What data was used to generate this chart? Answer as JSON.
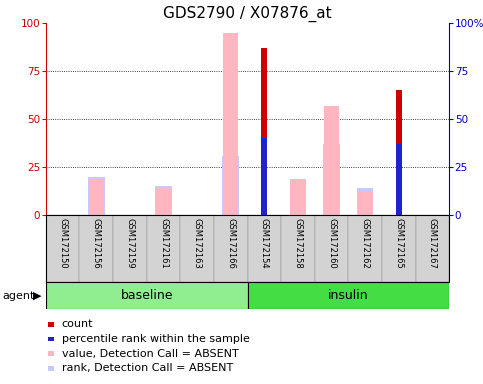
{
  "title": "GDS2790 / X07876_at",
  "samples": [
    "GSM172150",
    "GSM172156",
    "GSM172159",
    "GSM172161",
    "GSM172163",
    "GSM172166",
    "GSM172154",
    "GSM172158",
    "GSM172160",
    "GSM172162",
    "GSM172165",
    "GSM172167"
  ],
  "groups": [
    "baseline",
    "baseline",
    "baseline",
    "baseline",
    "baseline",
    "baseline",
    "insulin",
    "insulin",
    "insulin",
    "insulin",
    "insulin",
    "insulin"
  ],
  "yticks": [
    0,
    25,
    50,
    75,
    100
  ],
  "red_bars": [
    0,
    0,
    0,
    0,
    0,
    0,
    87,
    0,
    0,
    0,
    65,
    0
  ],
  "blue_bars": [
    0,
    0,
    0,
    0,
    0,
    0,
    40,
    0,
    0,
    0,
    37,
    0
  ],
  "pink_bars": [
    0,
    19,
    0,
    14,
    0,
    95,
    0,
    19,
    57,
    12,
    0,
    0
  ],
  "lavender_bars": [
    0,
    20,
    0,
    15,
    0,
    31,
    0,
    0,
    37,
    14,
    0,
    0
  ],
  "colors": {
    "red": "#CC0000",
    "blue": "#2222CC",
    "pink": "#FFB6C1",
    "lavender": "#C8C8FF"
  },
  "group_label_colors": {
    "baseline": "#90EE90",
    "insulin": "#44DD44"
  },
  "legend_items": [
    {
      "label": "count",
      "color": "#CC0000"
    },
    {
      "label": "percentile rank within the sample",
      "color": "#2222CC"
    },
    {
      "label": "value, Detection Call = ABSENT",
      "color": "#FFB6C1"
    },
    {
      "label": "rank, Detection Call = ABSENT",
      "color": "#C8C8FF"
    }
  ],
  "agent_label": "agent",
  "title_fontsize": 11,
  "tick_fontsize": 7.5,
  "sample_fontsize": 6,
  "legend_fontsize": 8
}
